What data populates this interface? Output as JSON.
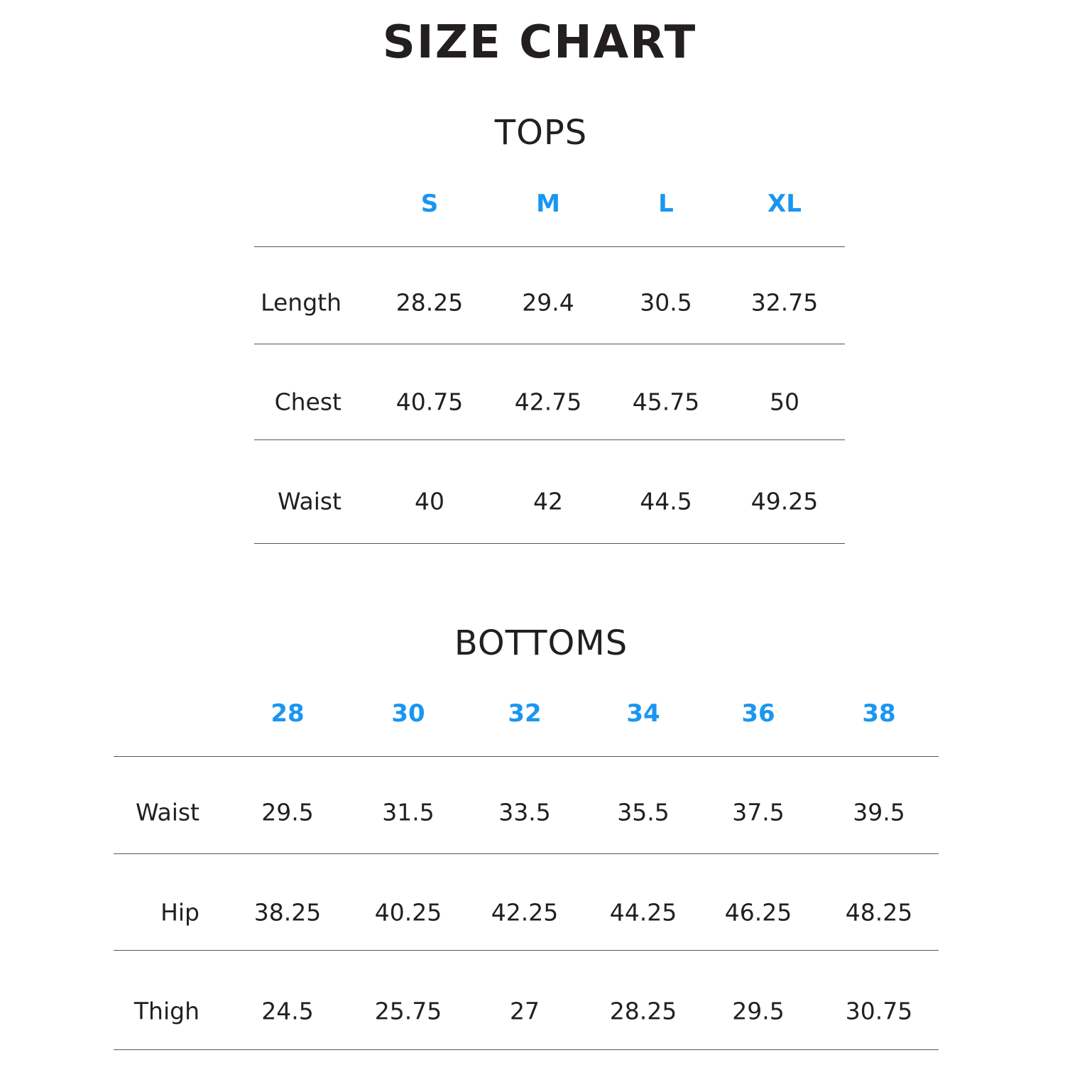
{
  "title": "SIZE CHART",
  "accent_color": "#1a96f0",
  "tops": {
    "heading": "TOPS",
    "sizes": [
      "S",
      "M",
      "L",
      "XL"
    ],
    "rows": [
      {
        "label": "Length",
        "values": [
          "28.25",
          "29.4",
          "30.5",
          "32.75"
        ]
      },
      {
        "label": "Chest",
        "values": [
          "40.75",
          "42.75",
          "45.75",
          "50"
        ]
      },
      {
        "label": "Waist",
        "values": [
          "40",
          "42",
          "44.5",
          "49.25"
        ]
      }
    ]
  },
  "bottoms": {
    "heading": "BOTTOMS",
    "sizes": [
      "28",
      "30",
      "32",
      "34",
      "36",
      "38"
    ],
    "rows": [
      {
        "label": "Waist",
        "values": [
          "29.5",
          "31.5",
          "33.5",
          "35.5",
          "37.5",
          "39.5"
        ]
      },
      {
        "label": "Hip",
        "values": [
          "38.25",
          "40.25",
          "42.25",
          "44.25",
          "46.25",
          "48.25"
        ]
      },
      {
        "label": "Thigh",
        "values": [
          "24.5",
          "25.75",
          "27",
          "28.25",
          "29.5",
          "30.75"
        ]
      }
    ]
  }
}
